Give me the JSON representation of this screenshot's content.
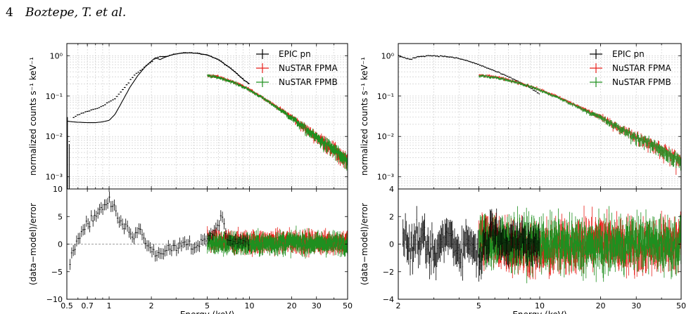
{
  "header": {
    "page_number": "4",
    "authors": "Boztepe, T. et al."
  },
  "colors": {
    "epic": "#000000",
    "fpma": "#e8201a",
    "fpmb": "#1f8f1f",
    "grid": "#c8c8c8",
    "ref": "#808080"
  },
  "chart_data": [
    {
      "type": "line",
      "panel": "left",
      "xscale": "log",
      "x_ticks": [
        0.5,
        0.7,
        1,
        2,
        5,
        10,
        20,
        30,
        50
      ],
      "xlim": [
        0.5,
        50
      ],
      "xlabel": "Energy (keV)",
      "top": {
        "yscale": "log",
        "ylim": [
          0.0005,
          2.0
        ],
        "ylabel": "normalized counts s⁻¹ keV⁻¹",
        "y_ticks": [
          {
            "v": 0.001,
            "label": "10⁻³"
          },
          {
            "v": 0.01,
            "label": "10⁻²"
          },
          {
            "v": 0.1,
            "label": "10⁻¹"
          },
          {
            "v": 1,
            "label": "10⁰"
          }
        ],
        "legend": [
          "EPIC pn",
          "NuSTAR FPMA",
          "NuSTAR FPMB"
        ],
        "legend_position": "top-right",
        "grid": true,
        "series": [
          {
            "name": "EPIC pn",
            "kind": "data",
            "points": [
              [
                0.55,
                0.028
              ],
              [
                0.6,
                0.034
              ],
              [
                0.65,
                0.038
              ],
              [
                0.7,
                0.042
              ],
              [
                0.75,
                0.045
              ],
              [
                0.8,
                0.048
              ],
              [
                0.85,
                0.052
              ],
              [
                0.9,
                0.058
              ],
              [
                0.95,
                0.064
              ],
              [
                1.0,
                0.072
              ],
              [
                1.1,
                0.085
              ],
              [
                1.2,
                0.12
              ],
              [
                1.3,
                0.17
              ],
              [
                1.4,
                0.23
              ],
              [
                1.5,
                0.32
              ],
              [
                1.7,
                0.45
              ],
              [
                1.9,
                0.62
              ],
              [
                2.1,
                0.82
              ],
              [
                2.3,
                0.95
              ],
              [
                2.5,
                0.95
              ],
              [
                2.8,
                1.05
              ],
              [
                3.2,
                1.15
              ],
              [
                3.7,
                1.18
              ],
              [
                4.2,
                1.15
              ],
              [
                5.0,
                1.05
              ],
              [
                6.0,
                0.8
              ],
              [
                7.0,
                0.55
              ],
              [
                8.0,
                0.38
              ],
              [
                9.0,
                0.26
              ],
              [
                10.0,
                0.2
              ]
            ]
          },
          {
            "name": "EPIC pn model",
            "kind": "model",
            "points": [
              [
                0.5,
                0.024
              ],
              [
                0.55,
                0.023
              ],
              [
                0.6,
                0.0225
              ],
              [
                0.7,
                0.022
              ],
              [
                0.8,
                0.022
              ],
              [
                0.9,
                0.023
              ],
              [
                1.0,
                0.025
              ],
              [
                1.1,
                0.035
              ],
              [
                1.2,
                0.06
              ],
              [
                1.4,
                0.16
              ],
              [
                1.6,
                0.32
              ],
              [
                1.8,
                0.52
              ],
              [
                2.0,
                0.74
              ],
              [
                2.15,
                0.9
              ],
              [
                2.3,
                0.8
              ],
              [
                2.5,
                0.92
              ],
              [
                2.8,
                1.05
              ],
              [
                3.2,
                1.15
              ],
              [
                3.7,
                1.18
              ],
              [
                4.2,
                1.15
              ],
              [
                5.0,
                1.05
              ],
              [
                6.0,
                0.8
              ],
              [
                7.0,
                0.55
              ],
              [
                8.0,
                0.38
              ],
              [
                9.0,
                0.26
              ],
              [
                10.0,
                0.2
              ]
            ]
          },
          {
            "name": "NuSTAR FPMA",
            "kind": "data",
            "points": [
              [
                5,
                0.33
              ],
              [
                6,
                0.3
              ],
              [
                7,
                0.25
              ],
              [
                8,
                0.21
              ],
              [
                9,
                0.175
              ],
              [
                10,
                0.145
              ],
              [
                12,
                0.1
              ],
              [
                15,
                0.06
              ],
              [
                20,
                0.03
              ],
              [
                25,
                0.016
              ],
              [
                30,
                0.01
              ],
              [
                40,
                0.005
              ],
              [
                50,
                0.0024
              ]
            ]
          },
          {
            "name": "NuSTAR FPMB",
            "kind": "data",
            "points": [
              [
                5,
                0.32
              ],
              [
                6,
                0.29
              ],
              [
                7,
                0.245
              ],
              [
                8,
                0.205
              ],
              [
                9,
                0.17
              ],
              [
                10,
                0.14
              ],
              [
                12,
                0.097
              ],
              [
                15,
                0.058
              ],
              [
                20,
                0.029
              ],
              [
                25,
                0.0155
              ],
              [
                30,
                0.0095
              ],
              [
                40,
                0.0048
              ],
              [
                50,
                0.0023
              ]
            ]
          }
        ]
      },
      "bottom": {
        "yscale": "linear",
        "ylim": [
          -10,
          10
        ],
        "ylabel": "(data−model)/error",
        "y_ticks": [
          {
            "v": -10,
            "label": "−10"
          },
          {
            "v": -5,
            "label": "−5"
          },
          {
            "v": 0,
            "label": "0"
          },
          {
            "v": 5,
            "label": "5"
          },
          {
            "v": 10,
            "label": "10"
          }
        ],
        "series": [
          {
            "name": "EPIC pn",
            "points": [
              [
                0.52,
                -3.5
              ],
              [
                0.55,
                -2
              ],
              [
                0.6,
                1.5
              ],
              [
                0.65,
                2.5
              ],
              [
                0.7,
                3.5
              ],
              [
                0.75,
                4.5
              ],
              [
                0.8,
                5.5
              ],
              [
                0.85,
                5.8
              ],
              [
                0.9,
                6.5
              ],
              [
                0.95,
                7.2
              ],
              [
                1.0,
                8
              ],
              [
                1.05,
                7
              ],
              [
                1.1,
                6
              ],
              [
                1.2,
                4
              ],
              [
                1.3,
                3
              ],
              [
                1.4,
                2.5
              ],
              [
                1.5,
                1.5
              ],
              [
                1.6,
                3
              ],
              [
                1.7,
                2
              ],
              [
                1.8,
                0.5
              ],
              [
                2.0,
                -0.5
              ],
              [
                2.2,
                -2
              ],
              [
                2.5,
                -1
              ],
              [
                3.0,
                -0.5
              ],
              [
                3.5,
                0.5
              ],
              [
                4.0,
                -0.5
              ],
              [
                4.5,
                0.2
              ],
              [
                5.0,
                0.5
              ],
              [
                6.0,
                3.5
              ],
              [
                6.3,
                5
              ],
              [
                7,
                1
              ],
              [
                8,
                0.5
              ],
              [
                9,
                0.5
              ],
              [
                10,
                0.3
              ]
            ]
          },
          {
            "name": "NuSTAR FPMA",
            "points": [
              [
                5,
                0.5
              ],
              [
                10,
                0.3
              ],
              [
                20,
                0.5
              ],
              [
                30,
                0.3
              ],
              [
                50,
                0.4
              ]
            ]
          },
          {
            "name": "NuSTAR FPMB",
            "points": [
              [
                5,
                0.2
              ],
              [
                10,
                0.0
              ],
              [
                20,
                0.3
              ],
              [
                30,
                0.1
              ],
              [
                50,
                0.2
              ]
            ]
          }
        ]
      }
    },
    {
      "type": "line",
      "panel": "right",
      "xscale": "log",
      "x_ticks": [
        2,
        5,
        10,
        20,
        30,
        50
      ],
      "xlim": [
        2,
        50
      ],
      "xlabel": "Energy (keV)",
      "top": {
        "yscale": "log",
        "ylim": [
          0.0005,
          2.0
        ],
        "ylabel": "normalized counts s⁻¹ keV⁻¹",
        "y_ticks": [
          {
            "v": 0.001,
            "label": "10⁻³"
          },
          {
            "v": 0.01,
            "label": "10⁻²"
          },
          {
            "v": 0.1,
            "label": "10⁻¹"
          },
          {
            "v": 1,
            "label": "10⁰"
          }
        ],
        "legend": [
          "EPIC pn",
          "NuSTAR FPMA",
          "NuSTAR FPMB"
        ],
        "legend_position": "top-right",
        "grid": true,
        "series": [
          {
            "name": "EPIC pn",
            "kind": "data",
            "points": [
              [
                2.0,
                1.0
              ],
              [
                2.1,
                0.92
              ],
              [
                2.2,
                0.85
              ],
              [
                2.3,
                0.8
              ],
              [
                2.4,
                0.9
              ],
              [
                2.6,
                0.97
              ],
              [
                2.8,
                1.0
              ],
              [
                3.0,
                1.0
              ],
              [
                3.5,
                0.95
              ],
              [
                4.0,
                0.85
              ],
              [
                4.5,
                0.72
              ],
              [
                5.0,
                0.6
              ],
              [
                6.0,
                0.42
              ],
              [
                7.0,
                0.3
              ],
              [
                8.0,
                0.22
              ],
              [
                9.0,
                0.16
              ],
              [
                10.0,
                0.11
              ]
            ]
          },
          {
            "name": "NuSTAR FPMA",
            "kind": "data",
            "points": [
              [
                5,
                0.33
              ],
              [
                6,
                0.3
              ],
              [
                7,
                0.25
              ],
              [
                8,
                0.21
              ],
              [
                9,
                0.175
              ],
              [
                10,
                0.145
              ],
              [
                12,
                0.1
              ],
              [
                15,
                0.06
              ],
              [
                20,
                0.03
              ],
              [
                25,
                0.016
              ],
              [
                30,
                0.01
              ],
              [
                40,
                0.005
              ],
              [
                50,
                0.0024
              ]
            ]
          },
          {
            "name": "NuSTAR FPMB",
            "kind": "data",
            "points": [
              [
                5,
                0.32
              ],
              [
                6,
                0.29
              ],
              [
                7,
                0.245
              ],
              [
                8,
                0.205
              ],
              [
                9,
                0.17
              ],
              [
                10,
                0.14
              ],
              [
                12,
                0.097
              ],
              [
                15,
                0.058
              ],
              [
                20,
                0.029
              ],
              [
                25,
                0.0155
              ],
              [
                30,
                0.0095
              ],
              [
                40,
                0.0048
              ],
              [
                50,
                0.0023
              ]
            ]
          }
        ]
      },
      "bottom": {
        "yscale": "linear",
        "ylim": [
          -4,
          4
        ],
        "ylabel": "(data−model)/error",
        "y_ticks": [
          {
            "v": -4,
            "label": "−4"
          },
          {
            "v": -2,
            "label": "−2"
          },
          {
            "v": 0,
            "label": "0"
          },
          {
            "v": 2,
            "label": "2"
          },
          {
            "v": 4,
            "label": "4"
          }
        ],
        "series": [
          {
            "name": "EPIC pn",
            "points": [
              [
                2.1,
                1
              ],
              [
                2.3,
                -0.5
              ],
              [
                2.5,
                0.5
              ],
              [
                3,
                -1
              ],
              [
                3.5,
                0.8
              ],
              [
                4,
                -0.5
              ],
              [
                4.5,
                0.3
              ],
              [
                5,
                -1
              ],
              [
                6,
                1.5
              ],
              [
                7,
                -0.5
              ],
              [
                8,
                0.5
              ],
              [
                9,
                -0.3
              ],
              [
                10,
                0.2
              ]
            ]
          },
          {
            "name": "NuSTAR FPMA",
            "points": [
              [
                5,
                0.5
              ],
              [
                10,
                -0.5
              ],
              [
                20,
                0.3
              ],
              [
                30,
                -0.2
              ],
              [
                50,
                0.1
              ]
            ]
          },
          {
            "name": "NuSTAR FPMB",
            "points": [
              [
                5,
                0.2
              ],
              [
                10,
                0.1
              ],
              [
                20,
                -0.3
              ],
              [
                30,
                0.2
              ],
              [
                50,
                -0.1
              ]
            ]
          }
        ]
      }
    }
  ]
}
